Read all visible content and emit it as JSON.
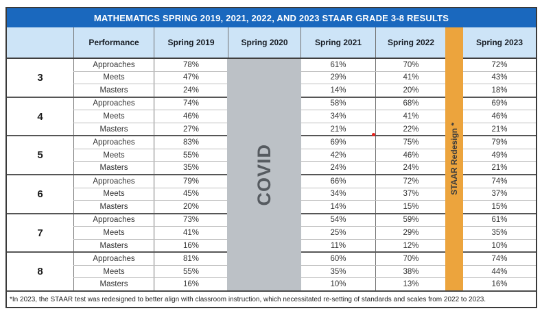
{
  "colors": {
    "title_bar": "#1a68be",
    "header_fill": "#cde4f7",
    "covid_fill": "#bcc1c6",
    "redesign_fill": "#eca43d",
    "group_divider": "#565656",
    "red_dot": "#e8251f"
  },
  "chart_data": {
    "type": "table",
    "title": "MATHEMATICS SPRING 2019, 2021, 2022, AND 2023 STAAR GRADE 3-8 RESULTS",
    "columns": {
      "grade": "",
      "performance": "Performance",
      "s2019": "Spring 2019",
      "s2020": "Spring 2020",
      "s2021": "Spring 2021",
      "s2022": "Spring 2022",
      "s2023": "Spring 2023"
    },
    "covid_label": "COVID",
    "redesign_label": "STAAR Redesign *",
    "footnote": "*In 2023, the STAAR test was redesigned to better align with classroom instruction, which necessitated re-setting of standards and scales from 2022 to 2023.",
    "grades": [
      {
        "grade": "3",
        "rows": [
          {
            "performance": "Approaches",
            "s2019": "78%",
            "s2021": "61%",
            "s2022": "70%",
            "s2023": "72%"
          },
          {
            "performance": "Meets",
            "s2019": "47%",
            "s2021": "29%",
            "s2022": "41%",
            "s2023": "43%"
          },
          {
            "performance": "Masters",
            "s2019": "24%",
            "s2021": "14%",
            "s2022": "20%",
            "s2023": "18%"
          }
        ]
      },
      {
        "grade": "4",
        "rows": [
          {
            "performance": "Approaches",
            "s2019": "74%",
            "s2021": "58%",
            "s2022": "68%",
            "s2023": "69%"
          },
          {
            "performance": "Meets",
            "s2019": "46%",
            "s2021": "34%",
            "s2022": "41%",
            "s2023": "46%"
          },
          {
            "performance": "Masters",
            "s2019": "27%",
            "s2021": "21%",
            "s2022": "22%",
            "s2023": "21%"
          }
        ]
      },
      {
        "grade": "5",
        "rows": [
          {
            "performance": "Approaches",
            "s2019": "83%",
            "s2021": "69%",
            "s2022": "75%",
            "s2023": "79%"
          },
          {
            "performance": "Meets",
            "s2019": "55%",
            "s2021": "42%",
            "s2022": "46%",
            "s2023": "49%"
          },
          {
            "performance": "Masters",
            "s2019": "35%",
            "s2021": "24%",
            "s2022": "24%",
            "s2023": "21%"
          }
        ]
      },
      {
        "grade": "6",
        "rows": [
          {
            "performance": "Approaches",
            "s2019": "79%",
            "s2021": "66%",
            "s2022": "72%",
            "s2023": "74%"
          },
          {
            "performance": "Meets",
            "s2019": "45%",
            "s2021": "34%",
            "s2022": "37%",
            "s2023": "37%"
          },
          {
            "performance": "Masters",
            "s2019": "20%",
            "s2021": "14%",
            "s2022": "15%",
            "s2023": "15%"
          }
        ]
      },
      {
        "grade": "7",
        "rows": [
          {
            "performance": "Approaches",
            "s2019": "73%",
            "s2021": "54%",
            "s2022": "59%",
            "s2023": "61%"
          },
          {
            "performance": "Meets",
            "s2019": "41%",
            "s2021": "25%",
            "s2022": "29%",
            "s2023": "35%"
          },
          {
            "performance": "Masters",
            "s2019": "16%",
            "s2021": "11%",
            "s2022": "12%",
            "s2023": "10%"
          }
        ]
      },
      {
        "grade": "8",
        "rows": [
          {
            "performance": "Approaches",
            "s2019": "81%",
            "s2021": "60%",
            "s2022": "70%",
            "s2023": "74%"
          },
          {
            "performance": "Meets",
            "s2019": "55%",
            "s2021": "35%",
            "s2022": "38%",
            "s2023": "44%"
          },
          {
            "performance": "Masters",
            "s2019": "16%",
            "s2021": "10%",
            "s2022": "13%",
            "s2023": "16%"
          }
        ]
      }
    ]
  }
}
